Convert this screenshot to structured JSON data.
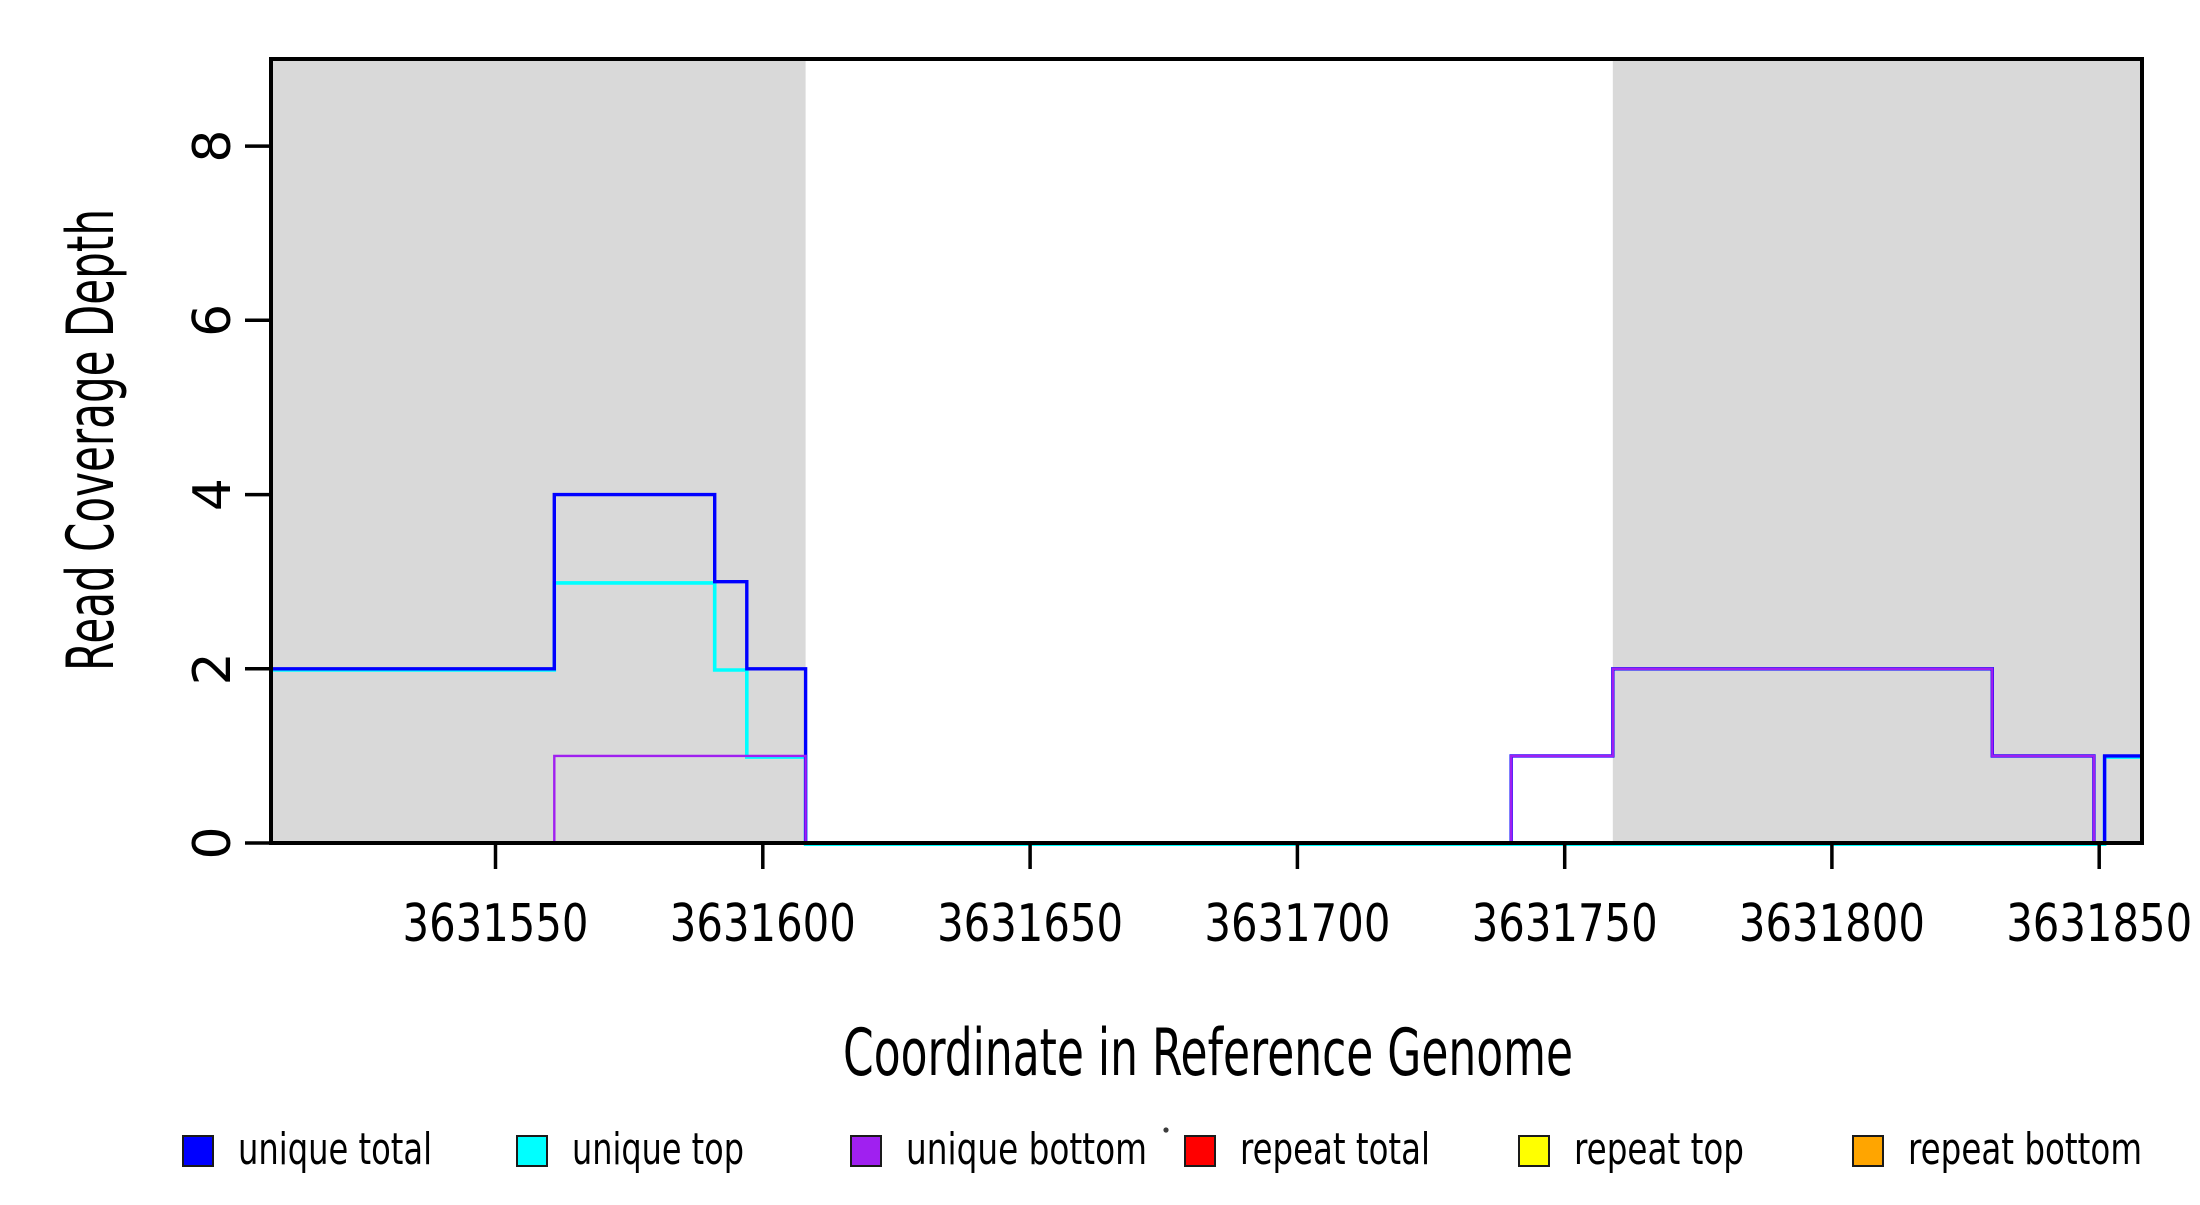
{
  "chart_data": {
    "type": "line",
    "subtype": "step-coverage-plot",
    "title": "",
    "xlabel": "Coordinate in Reference Genome",
    "ylabel": "Read Coverage Depth",
    "xlim": [
      3631508,
      3631858
    ],
    "ylim": [
      0,
      9
    ],
    "x_ticks": [
      3631550,
      3631600,
      3631650,
      3631700,
      3631750,
      3631800,
      3631850
    ],
    "y_ticks": [
      0,
      2,
      4,
      6,
      8
    ],
    "grid": false,
    "background_color": "#ffffff",
    "plot_border_color": "#000000",
    "shaded_regions": {
      "color": "#d9d9d9",
      "regions": [
        [
          3631508,
          3631608
        ],
        [
          3631759,
          3631858
        ]
      ]
    },
    "series": [
      {
        "name": "repeat total",
        "color": "#FF0000",
        "width": 3.6,
        "dy": 0,
        "points": [
          [
            3631508,
            0
          ]
        ],
        "end": 3631858
      },
      {
        "name": "repeat top",
        "color": "#FFFF00",
        "width": 2.6,
        "dy": 0,
        "points": [
          [
            3631561,
            0
          ]
        ],
        "end": 3631608
      },
      {
        "name": "repeat bottom",
        "color": "#FFA500",
        "width": 3.4,
        "dy": 0,
        "points": [
          [
            3631561,
            0
          ]
        ],
        "end": 3631608
      },
      {
        "name": "unique top",
        "color": "#00FFFF",
        "width": 3.6,
        "dy": 1.2,
        "points": [
          [
            3631508,
            2
          ],
          [
            3631561,
            3
          ],
          [
            3631591,
            2
          ],
          [
            3631597,
            1
          ],
          [
            3631608,
            0
          ],
          [
            3631851,
            1
          ]
        ],
        "end": 3631858
      },
      {
        "name": "unique total",
        "color": "#0000FF",
        "width": 3.4,
        "dy": 0,
        "points": [
          [
            3631508,
            2
          ],
          [
            3631561,
            4
          ],
          [
            3631591,
            3
          ],
          [
            3631597,
            2
          ],
          [
            3631608,
            0
          ],
          [
            3631740,
            1
          ],
          [
            3631759,
            2
          ],
          [
            3631830,
            1
          ],
          [
            3631849,
            0
          ],
          [
            3631851,
            1
          ]
        ],
        "end": 3631858
      },
      {
        "name": "unique bottom",
        "color": "#A020F0",
        "width": 2.4,
        "dy": 0,
        "points": [
          [
            3631508,
            0
          ],
          [
            3631561,
            1
          ],
          [
            3631608,
            0
          ],
          [
            3631740,
            1
          ],
          [
            3631759,
            2
          ],
          [
            3631830,
            1
          ],
          [
            3631849,
            0
          ]
        ],
        "end": 3631858
      }
    ],
    "legend": {
      "position": "bottom",
      "stray_mark": true,
      "entries": [
        {
          "label": "unique total",
          "color": "#0000FF"
        },
        {
          "label": "unique top",
          "color": "#00FFFF"
        },
        {
          "label": "unique bottom",
          "color": "#A020F0"
        },
        {
          "label": "repeat total",
          "color": "#FF0000"
        },
        {
          "label": "repeat top",
          "color": "#FFFF00"
        },
        {
          "label": "repeat bottom",
          "color": "#FFA500"
        }
      ]
    }
  }
}
